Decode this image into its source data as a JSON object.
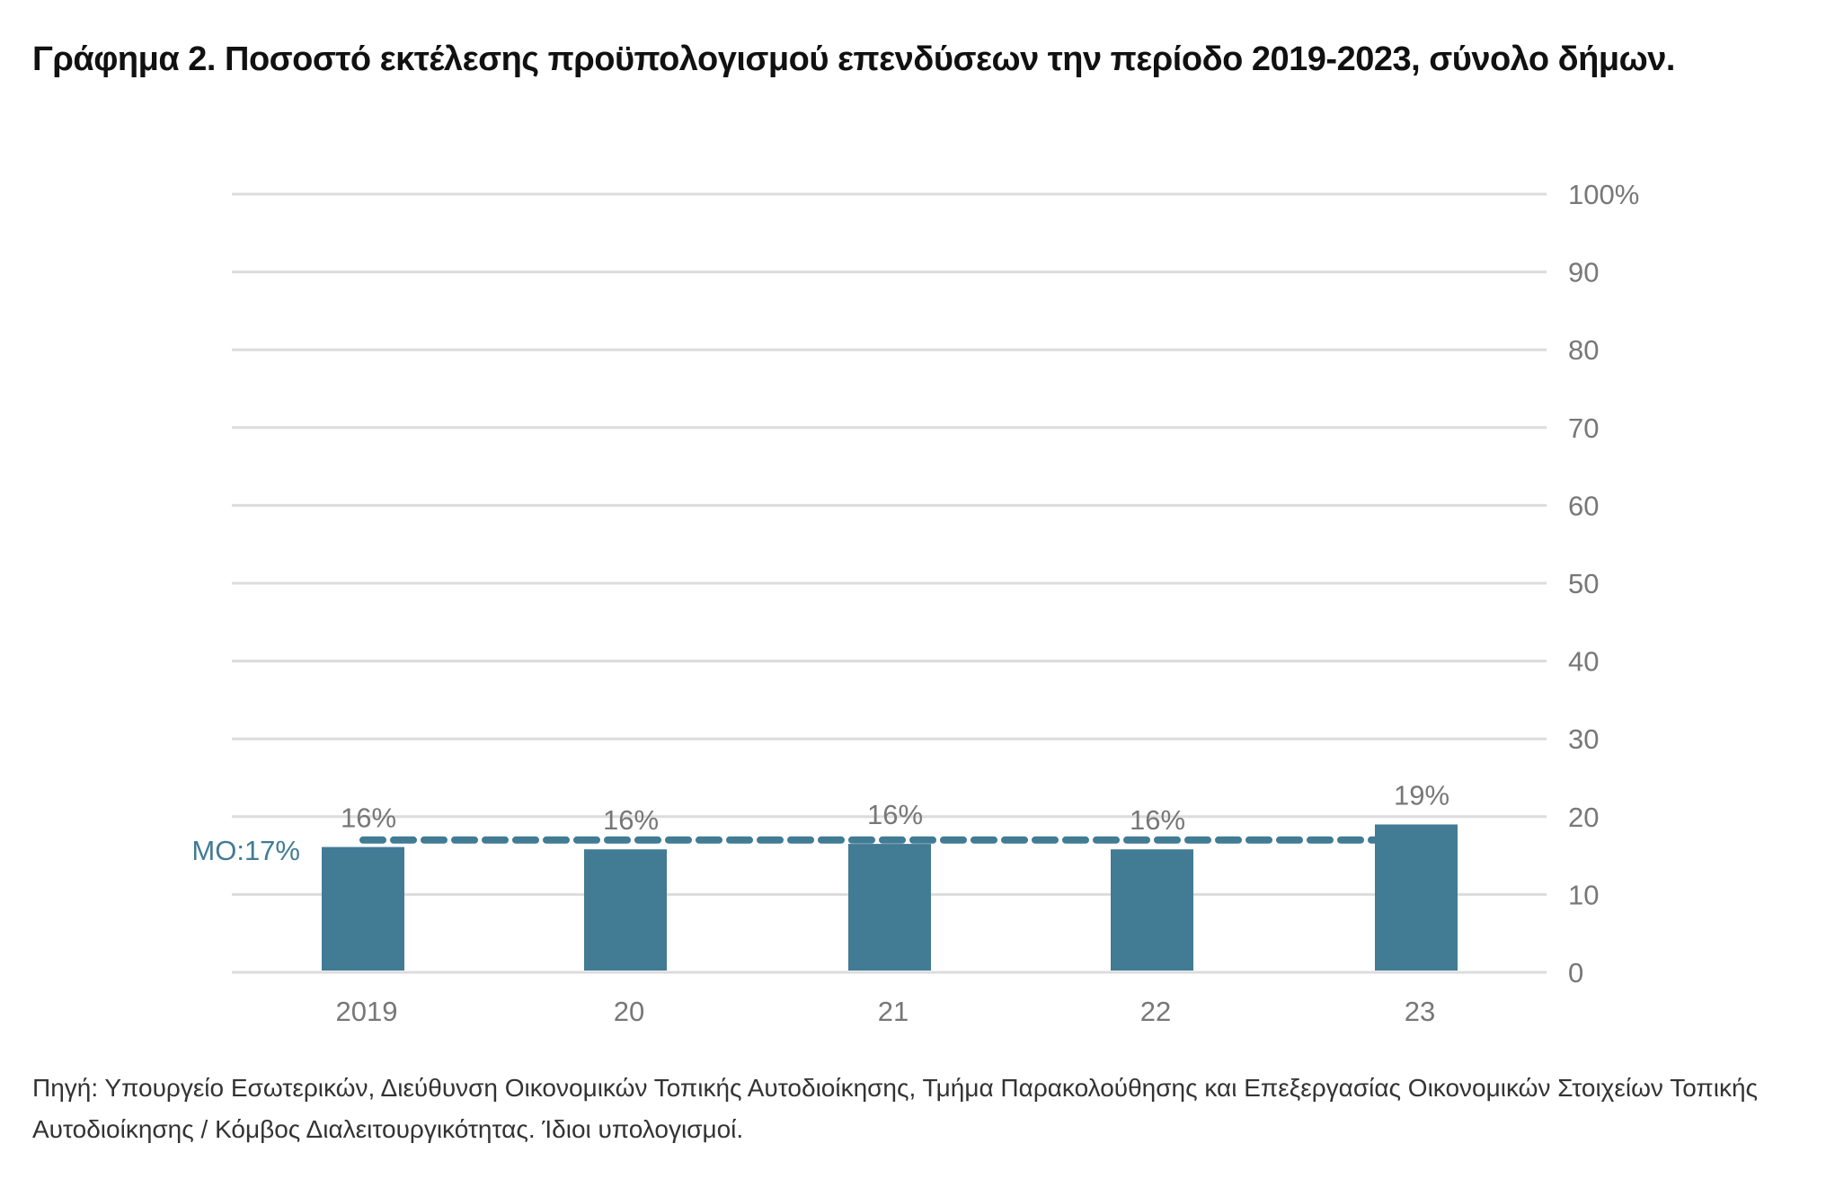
{
  "title": "Γράφημα 2. Ποσοστό εκτέλεσης προϋπολογισμού επενδύσεων την περίοδο 2019-2023, σύνολο δήμων.",
  "source": "Πηγή: Υπουργείο Εσωτερικών, Διεύθυνση Οικονομικών Τοπικής Αυτοδιοίκησης, Τμήμα Παρακολούθησης και Επεξεργασίας Οικονομικών Στοιχείων Τοπικής Αυτοδιοίκησης / Κόμβος Διαλειτουργικότητας. Ίδιοι υπολογισμοί.",
  "chart_data": {
    "type": "bar",
    "categories": [
      "2019",
      "20",
      "21",
      "22",
      "23"
    ],
    "values": [
      16.1,
      15.8,
      16.5,
      15.8,
      19.0
    ],
    "data_labels": [
      "16%",
      "16%",
      "16%",
      "16%",
      "19%"
    ],
    "ylim": [
      0,
      100
    ],
    "yticks": [
      "0",
      "10",
      "20",
      "30",
      "40",
      "50",
      "60",
      "70",
      "80",
      "90",
      "100%"
    ],
    "y_axis_position": "right",
    "grid": true,
    "reference_line": {
      "value": 17,
      "label": "ΜΟ:17%",
      "style": "dashed"
    },
    "colors": {
      "bar": "#417b94",
      "reference": "#417b94",
      "grid": "#dcdcdc",
      "labels": "#777777"
    }
  }
}
